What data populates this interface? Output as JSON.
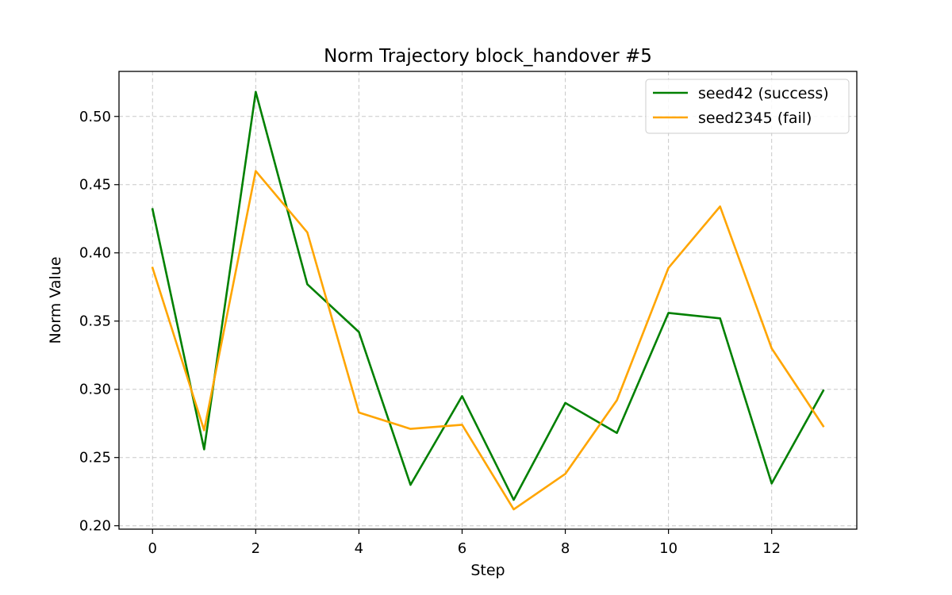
{
  "chart_data": {
    "type": "line",
    "title": "Norm Trajectory block_handover #5",
    "xlabel": "Step",
    "ylabel": "Norm Value",
    "x": [
      0,
      1,
      2,
      3,
      4,
      5,
      6,
      7,
      8,
      9,
      10,
      11,
      12,
      13
    ],
    "xlim": [
      -0.65,
      13.65
    ],
    "ylim": [
      0.1975,
      0.533
    ],
    "xticks": [
      0,
      2,
      4,
      6,
      8,
      10,
      12
    ],
    "xtick_labels": [
      "0",
      "2",
      "4",
      "6",
      "8",
      "10",
      "12"
    ],
    "yticks": [
      0.2,
      0.25,
      0.3,
      0.35,
      0.4,
      0.45,
      0.5
    ],
    "ytick_labels": [
      "0.20",
      "0.25",
      "0.30",
      "0.35",
      "0.40",
      "0.45",
      "0.50"
    ],
    "grid": true,
    "legend_position": "top-right",
    "series": [
      {
        "name": "seed42 (success)",
        "color": "#008000",
        "values": [
          0.432,
          0.256,
          0.518,
          0.377,
          0.342,
          0.23,
          0.295,
          0.219,
          0.29,
          0.268,
          0.356,
          0.352,
          0.231,
          0.299
        ]
      },
      {
        "name": "seed2345 (fail)",
        "color": "#FFA500",
        "values": [
          0.389,
          0.27,
          0.46,
          0.415,
          0.283,
          0.271,
          0.274,
          0.212,
          0.238,
          0.292,
          0.389,
          0.434,
          0.33,
          0.273
        ]
      }
    ]
  }
}
